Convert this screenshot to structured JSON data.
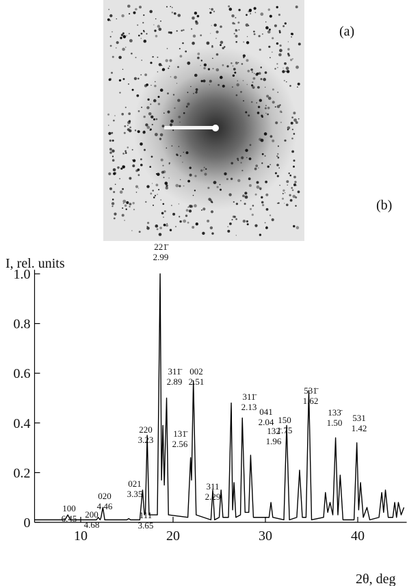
{
  "chart_data": {
    "type": "line",
    "panel_a_label": "(a)",
    "panel_b_label": "(b)",
    "ylabel": "I, rel. units",
    "xlabel": "2θ, deg",
    "xlim": [
      5,
      45
    ],
    "ylim": [
      0,
      1.0
    ],
    "xticks": [
      10,
      20,
      30,
      40
    ],
    "yticks": [
      0,
      0.2,
      0.4,
      0.6,
      0.8,
      {
        "value": 1,
        "label": "1.0"
      }
    ],
    "series": [
      {
        "color": "#000000",
        "x": [
          5,
          8.3,
          8.6,
          8.9,
          11.7,
          11.9,
          12.1,
          12.2,
          12.4,
          12.6,
          15.0,
          15.2,
          15.4,
          16.4,
          16.7,
          16.9,
          17.0,
          17.2,
          17.4,
          18.3,
          18.6,
          18.75,
          18.9,
          19.05,
          19.3,
          19.5,
          21.6,
          21.9,
          22.0,
          22.2,
          22.5,
          24.1,
          24.3,
          24.5,
          25.0,
          25.2,
          25.4,
          26.0,
          26.3,
          26.45,
          26.6,
          26.8,
          27.3,
          27.5,
          27.8,
          28.2,
          28.4,
          28.7,
          30.4,
          30.6,
          30.8,
          32.0,
          32.3,
          32.6,
          33.4,
          33.7,
          34.0,
          34.4,
          34.7,
          35.0,
          36.3,
          36.5,
          36.75,
          37.0,
          37.3,
          37.6,
          37.85,
          38.1,
          38.4,
          39.6,
          39.9,
          40.1,
          40.3,
          40.6,
          41.0,
          41.3,
          42.3,
          42.6,
          42.8,
          43.0,
          43.3,
          43.8,
          44.0,
          44.2,
          44.4,
          44.7,
          45
        ],
        "values": [
          0.01,
          0.01,
          0.03,
          0.01,
          0.01,
          0.02,
          0.01,
          0.02,
          0.06,
          0.01,
          0.01,
          0.015,
          0.01,
          0.01,
          0.13,
          0.03,
          0.04,
          0.35,
          0.03,
          0.03,
          1.0,
          0.17,
          0.39,
          0.15,
          0.5,
          0.03,
          0.02,
          0.26,
          0.17,
          0.57,
          0.03,
          0.01,
          0.13,
          0.01,
          0.02,
          0.13,
          0.02,
          0.02,
          0.48,
          0.05,
          0.16,
          0.02,
          0.03,
          0.42,
          0.04,
          0.04,
          0.27,
          0.02,
          0.02,
          0.08,
          0.02,
          0.01,
          0.39,
          0.01,
          0.02,
          0.21,
          0.02,
          0.02,
          0.53,
          0.01,
          0.02,
          0.12,
          0.04,
          0.08,
          0.03,
          0.34,
          0.03,
          0.19,
          0.01,
          0.01,
          0.32,
          0.05,
          0.16,
          0.02,
          0.06,
          0.01,
          0.02,
          0.12,
          0.04,
          0.13,
          0.02,
          0.02,
          0.08,
          0.02,
          0.08,
          0.03,
          0.06
        ]
      }
    ],
    "annotations": [
      {
        "hkl": "100",
        "d": "6.45"
      },
      {
        "hkl": "200",
        "d": "4.68"
      },
      {
        "hkl": "020",
        "d": "4.46"
      },
      {
        "hkl": "111",
        "d": "3.65"
      },
      {
        "hkl": "021",
        "d": "3.35"
      },
      {
        "hkl": "220",
        "d": "3.23"
      },
      {
        "hkl": "221̄",
        "d": "2.99"
      },
      {
        "hkl": "311̄",
        "d": "2.89"
      },
      {
        "hkl": "131̄",
        "d": "2.56"
      },
      {
        "hkl": "002",
        "d": "2.51"
      },
      {
        "hkl": "311",
        "d": "2.29"
      },
      {
        "hkl": "311̄",
        "d": "2.13"
      },
      {
        "hkl": "041",
        "d": "2.04"
      },
      {
        "hkl": "132̄",
        "d": "1.96"
      },
      {
        "hkl": "150",
        "d": "1.75"
      },
      {
        "hkl": "531̄",
        "d": "1.62"
      },
      {
        "hkl": "133̄",
        "d": "1.50"
      },
      {
        "hkl": "531",
        "d": "1.42"
      }
    ]
  }
}
